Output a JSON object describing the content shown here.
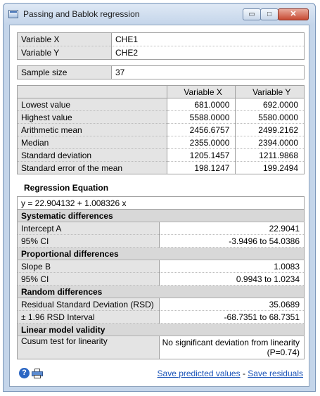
{
  "window": {
    "title": "Passing and Bablok regression",
    "minimize_label": "▭",
    "maximize_label": "□",
    "close_label": "✕",
    "icon": "app-window-icon"
  },
  "variables": {
    "x_label": "Variable X",
    "x_value": "CHE1",
    "y_label": "Variable Y",
    "y_value": "CHE2"
  },
  "sample": {
    "label": "Sample size",
    "value": "37"
  },
  "stats": {
    "header_x": "Variable X",
    "header_y": "Variable Y",
    "rows": [
      {
        "label": "Lowest value",
        "x": "681.0000",
        "y": "692.0000"
      },
      {
        "label": "Highest value",
        "x": "5588.0000",
        "y": "5580.0000"
      },
      {
        "label": "Arithmetic mean",
        "x": "2456.6757",
        "y": "2499.2162"
      },
      {
        "label": "Median",
        "x": "2355.0000",
        "y": "2394.0000"
      },
      {
        "label": "Standard deviation",
        "x": "1205.1457",
        "y": "1211.9868"
      },
      {
        "label": "Standard error of the mean",
        "x": "198.1247",
        "y": "199.2494"
      }
    ]
  },
  "regression": {
    "title": "Regression Equation",
    "equation": "y = 22.904132  +  1.008326  x",
    "systematic_title": "Systematic differences",
    "intercept_label": "Intercept A",
    "intercept_value": "22.9041",
    "intercept_ci_label": "95% CI",
    "intercept_ci_value": "-3.9496 to 54.0386",
    "proportional_title": "Proportional differences",
    "slope_label": "Slope B",
    "slope_value": "1.0083",
    "slope_ci_label": "95% CI",
    "slope_ci_value": "0.9943 to 1.0234",
    "random_title": "Random differences",
    "rsd_label": "Residual Standard Deviation (RSD)",
    "rsd_value": "35.0689",
    "rsd_interval_label": "± 1.96 RSD Interval",
    "rsd_interval_value": "-68.7351 to 68.7351",
    "validity_title": "Linear model validity",
    "cusum_label": "Cusum test for linearity",
    "cusum_value": "No significant deviation from linearity (P=0.74)"
  },
  "footer": {
    "help_glyph": "?",
    "help_icon": "help-icon",
    "print_icon": "printer-icon",
    "save_predicted": "Save predicted values",
    "separator": " - ",
    "save_residuals": "Save residuals"
  },
  "colors": {
    "link": "#1a53b8",
    "label_bg": "#e4e4e4",
    "window_frame": "#c4d5ea"
  }
}
